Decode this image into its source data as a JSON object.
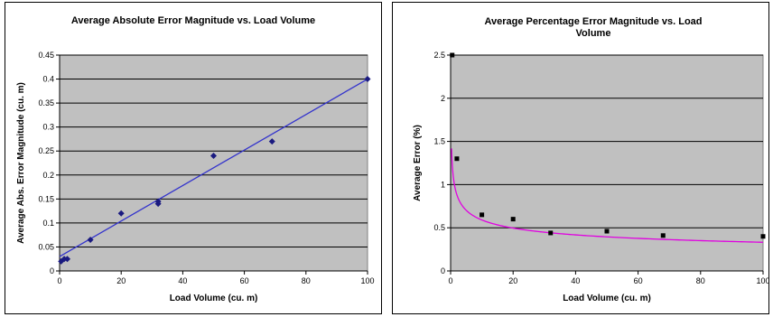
{
  "chart_data": [
    {
      "type": "scatter",
      "title": "Average Absolute Error Magnitude vs. Load Volume",
      "xlabel": "Load Volume (cu. m)",
      "ylabel": "Average Abs. Error Magnitude (cu. m)",
      "xlim": [
        0,
        100
      ],
      "ylim": [
        0,
        0.45
      ],
      "xticks": [
        "0",
        "20",
        "40",
        "60",
        "80",
        "100"
      ],
      "yticks": [
        "0",
        "0.05",
        "0.1",
        "0.15",
        "0.2",
        "0.25",
        "0.3",
        "0.35",
        "0.4",
        "0.45"
      ],
      "grid": "horizontal",
      "plot_bg": "#c0c0c0",
      "marker_color": "#1a1a80",
      "trend_color": "#3333cc",
      "trendline": {
        "kind": "linear",
        "slope": 0.0037,
        "intercept": 0.03
      },
      "points": [
        {
          "x": 0.5,
          "y": 0.02
        },
        {
          "x": 1.5,
          "y": 0.025
        },
        {
          "x": 2.5,
          "y": 0.025
        },
        {
          "x": 10,
          "y": 0.065
        },
        {
          "x": 20,
          "y": 0.12
        },
        {
          "x": 32,
          "y": 0.14
        },
        {
          "x": 32,
          "y": 0.145
        },
        {
          "x": 50,
          "y": 0.24
        },
        {
          "x": 69,
          "y": 0.27
        },
        {
          "x": 100,
          "y": 0.4
        }
      ]
    },
    {
      "type": "scatter",
      "title": "Average Percentage Error Magnitude vs. Load Volume",
      "xlabel": "Load Volume (cu. m)",
      "ylabel": "Average Error (%)",
      "xlim": [
        0,
        100
      ],
      "ylim": [
        0,
        2.5
      ],
      "xticks": [
        "0",
        "20",
        "40",
        "60",
        "80",
        "100"
      ],
      "yticks": [
        "0",
        "0.5",
        "1",
        "1.5",
        "2",
        "2.5"
      ],
      "grid": "horizontal",
      "plot_bg": "#c0c0c0",
      "marker_color": "#000000",
      "trend_color": "#e000e0",
      "trendline": {
        "kind": "power",
        "a": 1.05,
        "b": -0.25,
        "xmin": 0.3
      },
      "points": [
        {
          "x": 0.5,
          "y": 2.5
        },
        {
          "x": 2,
          "y": 1.3
        },
        {
          "x": 10,
          "y": 0.65
        },
        {
          "x": 20,
          "y": 0.6
        },
        {
          "x": 32,
          "y": 0.44
        },
        {
          "x": 50,
          "y": 0.46
        },
        {
          "x": 68,
          "y": 0.41
        },
        {
          "x": 100,
          "y": 0.4
        }
      ]
    }
  ]
}
